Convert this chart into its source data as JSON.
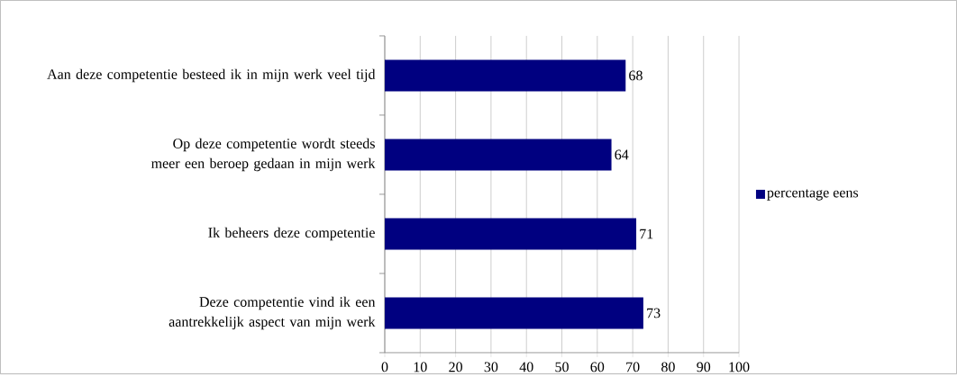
{
  "chart_data": {
    "type": "bar",
    "orientation": "horizontal",
    "categories": [
      "Aan deze competentie besteed ik in mijn werk veel tijd",
      "Op deze competentie wordt steeds meer een beroep gedaan in mijn werk",
      "Ik beheers deze competentie",
      "Deze competentie vind ik een aantrekkelijk aspect van mijn werk"
    ],
    "series": [
      {
        "name": "percentage eens",
        "color": "#000080",
        "values": [
          68,
          64,
          71,
          73
        ]
      }
    ],
    "xlim": [
      0,
      100
    ],
    "xticks": [
      0,
      10,
      20,
      30,
      40,
      50,
      60,
      70,
      80,
      90,
      100
    ],
    "grid": "x",
    "legend": "right",
    "data_labels": true
  }
}
